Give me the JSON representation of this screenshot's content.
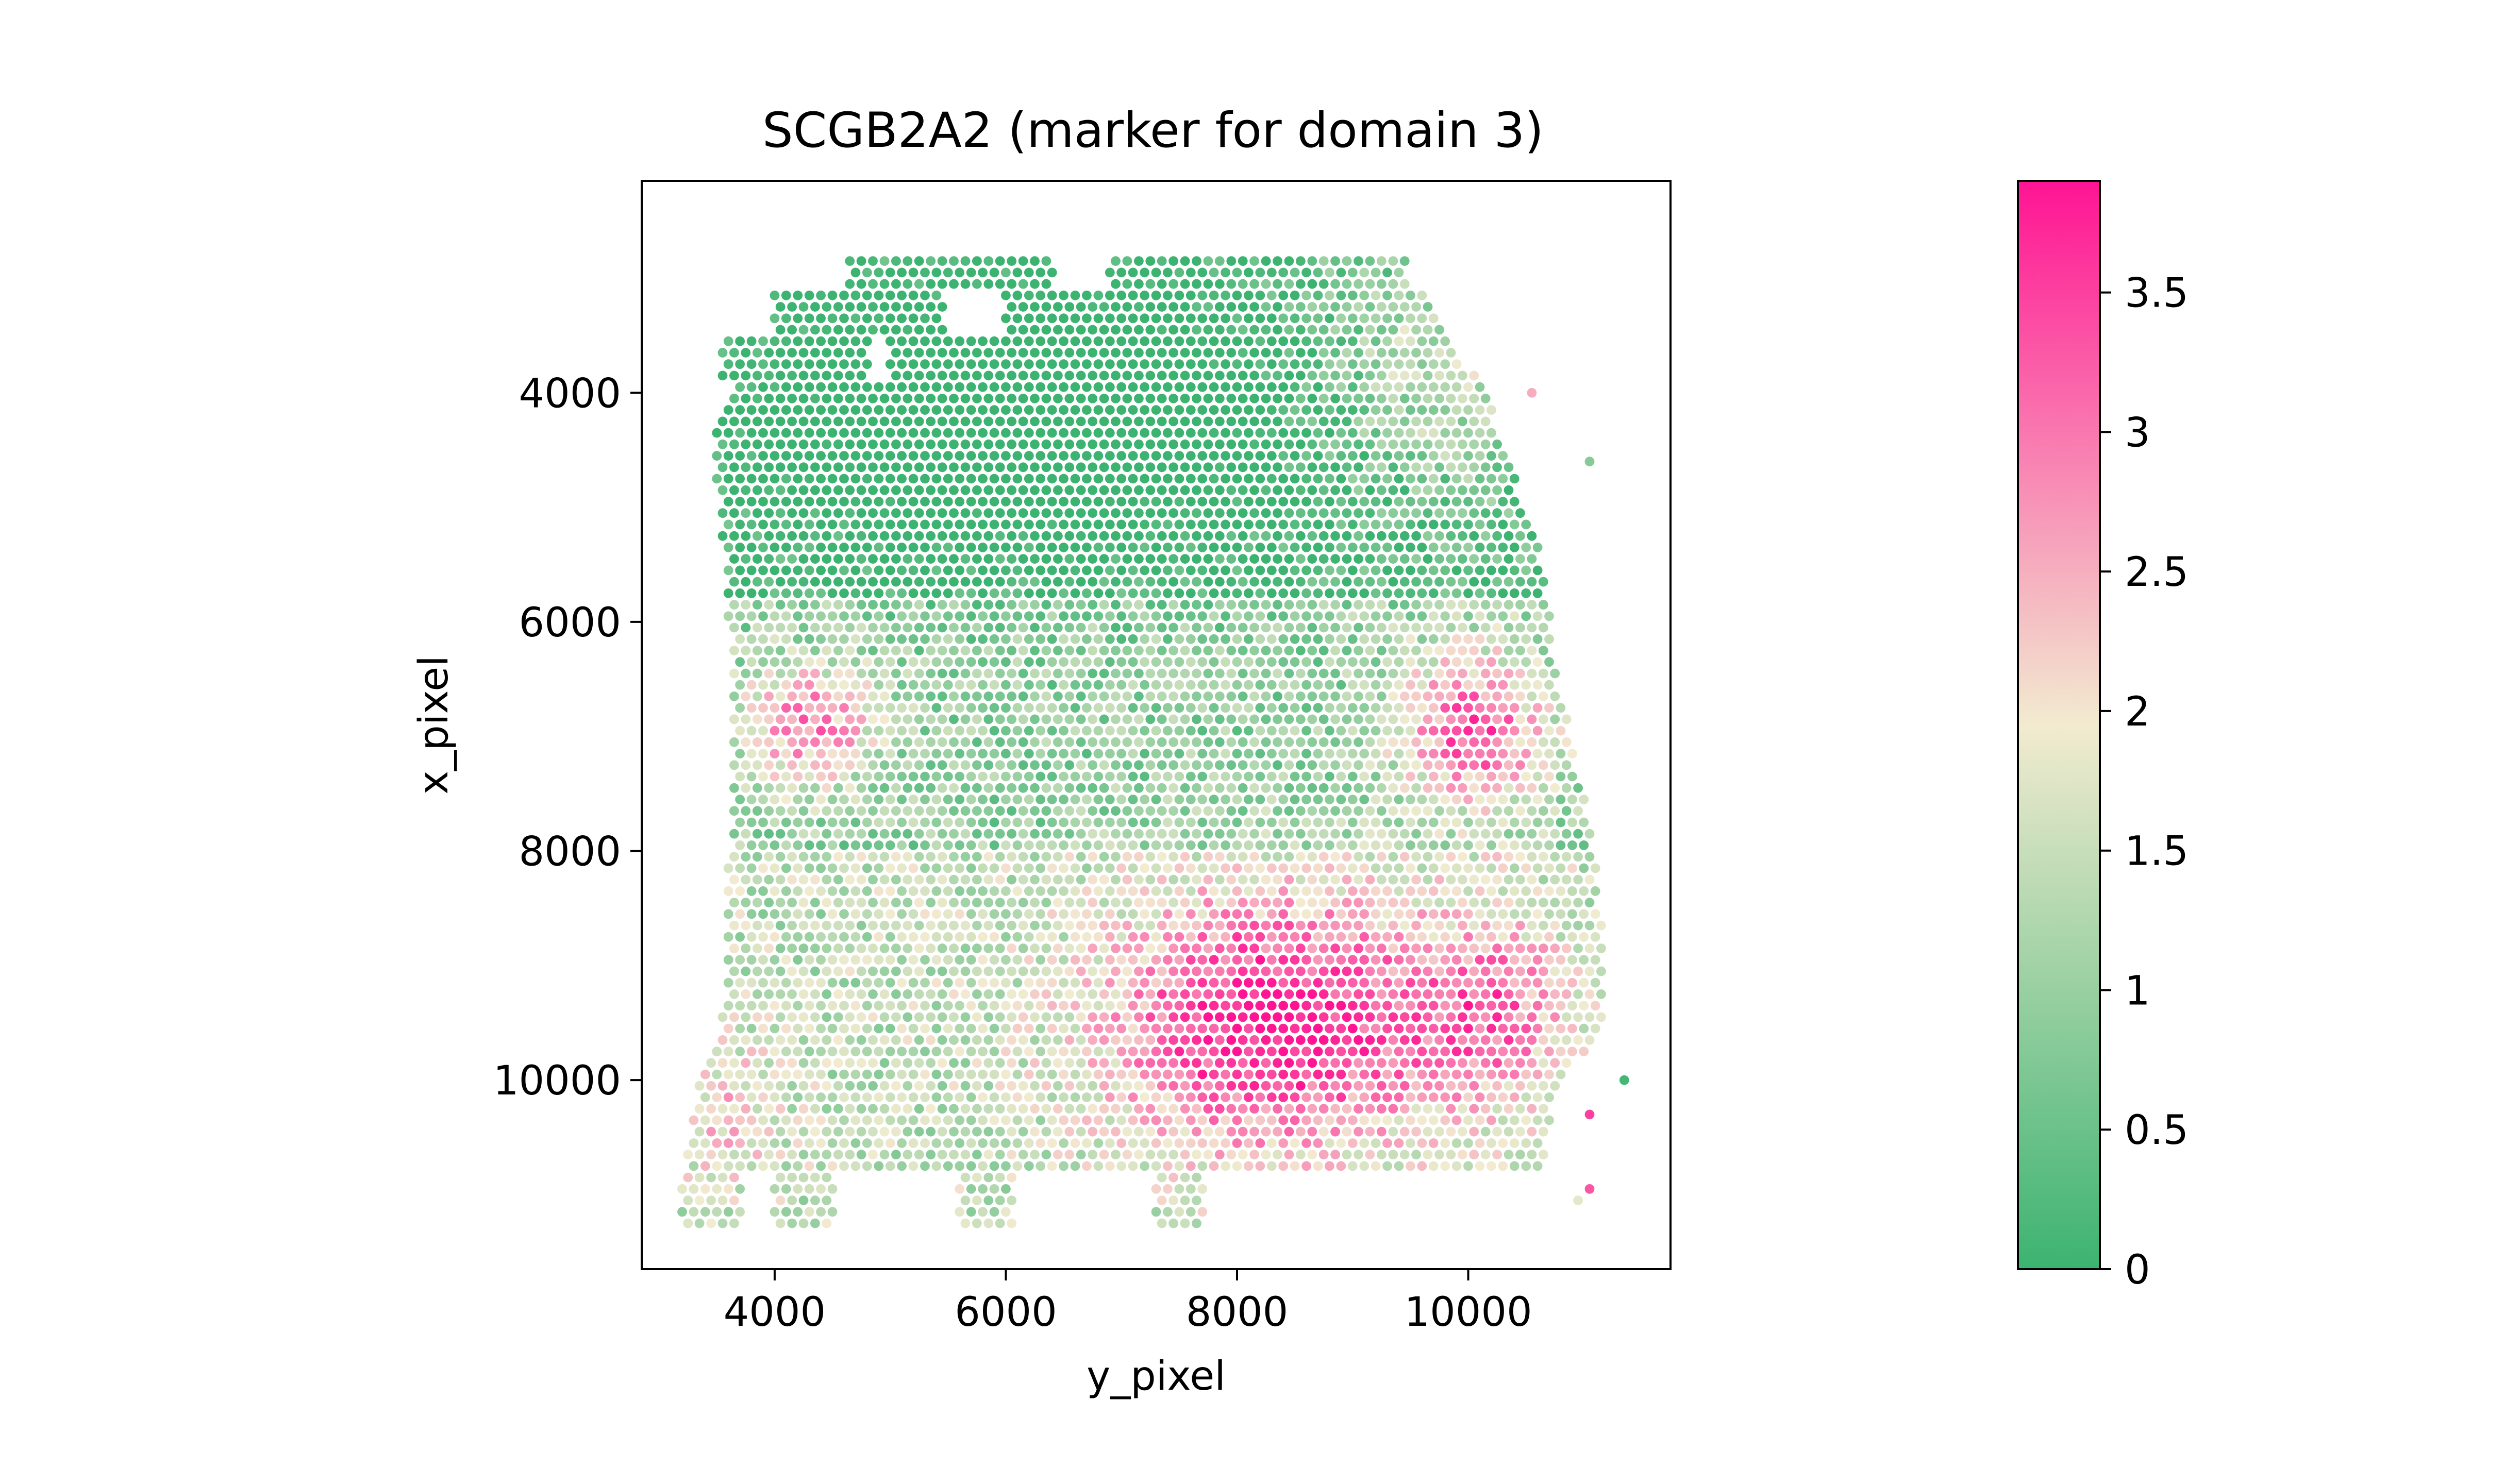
{
  "chart_data": {
    "type": "scatter",
    "title": "SCGB2A2 (marker for domain 3)",
    "xlabel": "y_pixel",
    "ylabel": "x_pixel",
    "xlim": [
      2850,
      11750
    ],
    "ylim": [
      11650,
      2150
    ],
    "y_axis_inverted": true,
    "xticks": [
      4000,
      6000,
      8000,
      10000
    ],
    "xtick_labels": [
      "4000",
      "6000",
      "8000",
      "10000"
    ],
    "yticks": [
      4000,
      6000,
      8000,
      10000
    ],
    "ytick_labels": [
      "4000",
      "6000",
      "8000",
      "10000"
    ],
    "grid": false,
    "colorbar": {
      "min": 0,
      "max": 3.9,
      "ticks": [
        0,
        0.5,
        1,
        1.5,
        2,
        2.5,
        3,
        3.5
      ],
      "tick_labels": [
        "0",
        "0.5",
        "1",
        "1.5",
        "2",
        "2.5",
        "3",
        "3.5"
      ],
      "colors": [
        "#3cb371",
        "#f2ebd0",
        "#ff1493"
      ]
    },
    "spot_grid": {
      "spacing": 100,
      "row_spacing": 100
    },
    "expression_regions": [
      {
        "region": "upper lobe (y_pixel 4000-9500, x_pixel 3000-6000)",
        "level": 0.1
      },
      {
        "region": "upper-right rim (y_pixel 7200-10700, x_pixel 2900-5500)",
        "level": 1.8
      },
      {
        "region": "left cluster (y_pixel 3800-4800, x_pixel 6300-7300)",
        "level": 3.0
      },
      {
        "region": "right cluster (y_pixel 9500-10500, x_pixel 6400-7600)",
        "level": 3.4
      },
      {
        "region": "lower-center core (y_pixel 6900-9600, x_pixel 8400-10800)",
        "level": 3.5
      },
      {
        "region": "lower-right (y_pixel 9500-11000, x_pixel 8800-10200)",
        "level": 3.0
      },
      {
        "region": "middle band (y_pixel 4500-9000, x_pixel 6000-8000)",
        "level": 0.8
      },
      {
        "region": "lower-left (y_pixel 3400-6700, x_pixel 8000-11000)",
        "level": 1.5
      }
    ]
  }
}
